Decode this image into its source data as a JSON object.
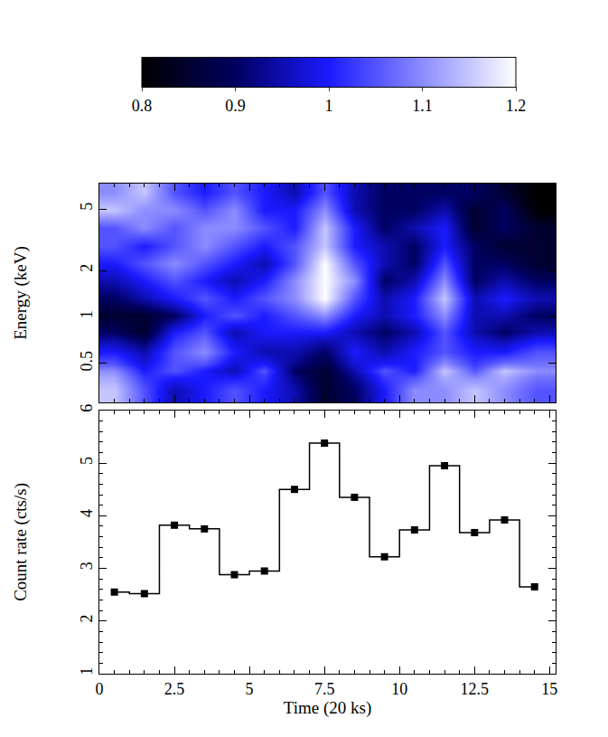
{
  "chart_data": [
    {
      "type": "heatmap",
      "ylabel": "Energy (keV)",
      "log": "y",
      "tick_labels": "y",
      "x_bins": [
        0,
        1,
        2,
        3,
        4,
        5,
        6,
        7,
        8,
        9,
        10,
        11,
        12,
        13,
        14,
        15.2
      ],
      "y_bins": [
        0.28,
        0.4,
        0.5,
        0.7,
        0.9,
        1.15,
        1.5,
        1.95,
        2.5,
        3.3,
        4.3,
        5.6,
        7.3
      ],
      "z": [
        [
          1.15,
          1.05,
          0.95,
          1.0,
          1.05,
          1.0,
          0.95,
          0.85,
          0.9,
          1.0,
          1.1,
          1.1,
          1.15,
          1.1,
          1.05
        ],
        [
          1.1,
          1.0,
          1.05,
          1.0,
          0.95,
          1.05,
          0.9,
          0.85,
          0.95,
          1.05,
          1.0,
          1.15,
          1.05,
          1.15,
          1.1
        ],
        [
          1.0,
          0.95,
          1.05,
          1.1,
          1.0,
          0.95,
          0.95,
          0.9,
          1.0,
          0.95,
          1.0,
          1.05,
          1.0,
          1.0,
          1.05
        ],
        [
          0.9,
          0.85,
          1.0,
          1.05,
          0.95,
          1.0,
          1.0,
          1.0,
          0.95,
          0.9,
          0.95,
          1.05,
          0.95,
          0.9,
          0.95
        ],
        [
          0.85,
          0.85,
          0.9,
          1.0,
          1.05,
          1.0,
          1.05,
          1.1,
          1.0,
          0.95,
          1.0,
          1.1,
          0.95,
          0.95,
          0.9
        ],
        [
          0.9,
          0.95,
          1.0,
          1.05,
          1.0,
          1.05,
          1.1,
          1.2,
          1.05,
          0.95,
          1.0,
          1.15,
          0.95,
          1.0,
          0.95
        ],
        [
          0.95,
          1.0,
          1.05,
          1.0,
          0.95,
          1.0,
          1.1,
          1.2,
          1.1,
          0.9,
          0.95,
          1.1,
          0.9,
          0.95,
          0.9
        ],
        [
          1.0,
          1.05,
          1.1,
          1.05,
          1.0,
          0.95,
          1.05,
          1.2,
          1.05,
          0.95,
          0.9,
          1.05,
          0.9,
          0.9,
          0.85
        ],
        [
          1.05,
          1.0,
          1.05,
          1.1,
          1.05,
          1.0,
          1.05,
          1.15,
          1.0,
          0.95,
          0.9,
          1.0,
          0.9,
          0.85,
          0.85
        ],
        [
          1.05,
          1.1,
          1.05,
          1.1,
          1.1,
          1.05,
          1.0,
          1.15,
          1.0,
          0.9,
          0.95,
          1.0,
          0.85,
          0.9,
          0.85
        ],
        [
          1.15,
          1.1,
          1.1,
          1.05,
          1.1,
          1.0,
          1.0,
          1.1,
          0.95,
          0.9,
          0.9,
          0.95,
          0.85,
          0.9,
          0.8
        ],
        [
          1.1,
          1.15,
          1.05,
          1.0,
          1.05,
          1.0,
          0.95,
          1.05,
          0.95,
          0.9,
          0.9,
          0.9,
          0.9,
          0.85,
          0.8
        ]
      ],
      "colorbar": {
        "range": [
          0.8,
          1.2
        ],
        "ticks": [
          0.8,
          0.9,
          1,
          1.1,
          1.2
        ]
      },
      "xlim": [
        0,
        15.2
      ],
      "xticks": [
        0,
        2.5,
        5,
        7.5,
        10,
        12.5,
        15
      ],
      "ylim": [
        0.28,
        7.3
      ],
      "yticks": [
        0.5,
        1,
        2,
        5
      ]
    },
    {
      "type": "line",
      "xlabel": "Time (20 ks)",
      "ylabel": "Count rate (cts/s)",
      "x": [
        0.5,
        1.5,
        2.5,
        3.5,
        4.5,
        5.5,
        6.5,
        7.5,
        8.5,
        9.5,
        10.5,
        11.5,
        12.5,
        13.5,
        14.5
      ],
      "values": [
        2.55,
        2.52,
        3.82,
        3.75,
        2.88,
        2.95,
        4.5,
        5.38,
        4.35,
        3.22,
        3.73,
        4.95,
        3.68,
        3.92,
        2.65
      ],
      "color": "#000000",
      "marker": "square",
      "line_style": "step",
      "xlim": [
        0,
        15.2
      ],
      "xticks": [
        0,
        2.5,
        5,
        7.5,
        10,
        12.5,
        15
      ],
      "ylim": [
        1,
        6
      ],
      "yticks": [
        1,
        2,
        3,
        4,
        5,
        6
      ]
    }
  ]
}
